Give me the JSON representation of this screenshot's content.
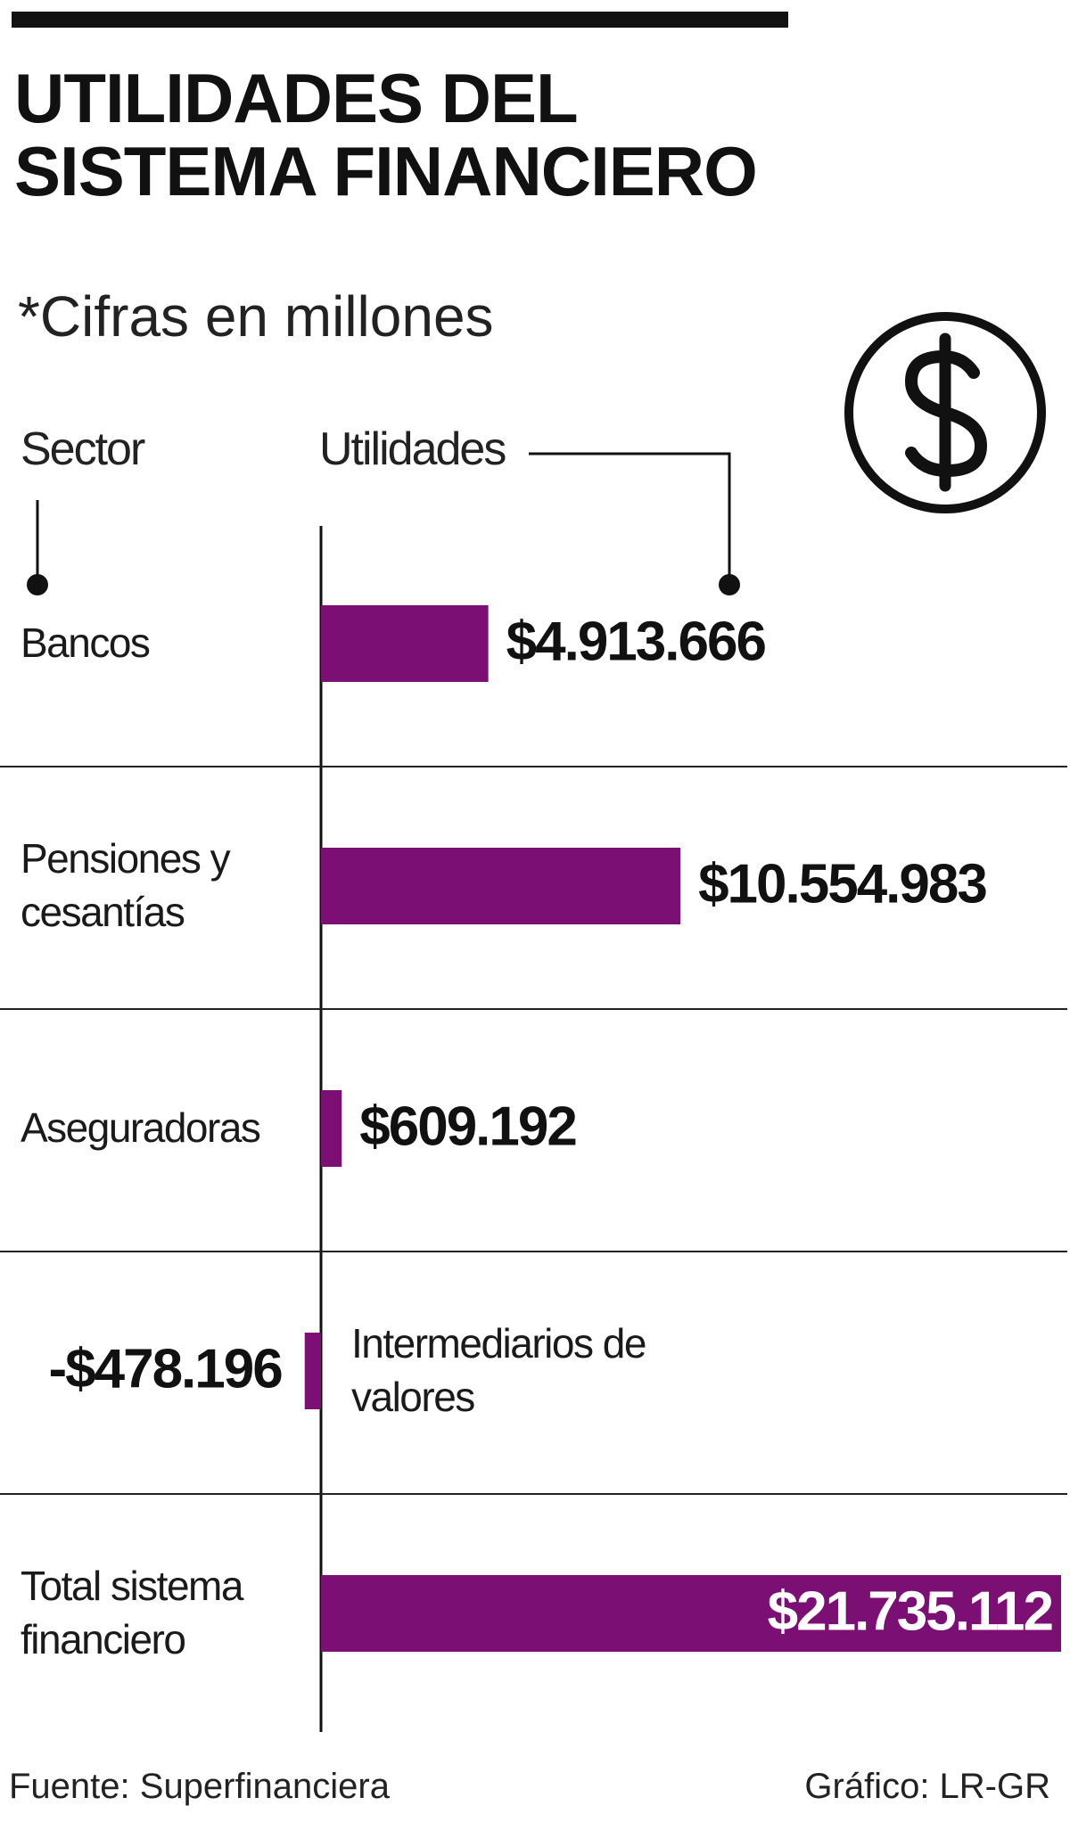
{
  "chart_data": {
    "type": "bar",
    "title": "UTILIDADES DEL SISTEMA FINANCIERO",
    "subtitle": "*Cifras en millones",
    "category_header": "Sector",
    "value_header": "Utilidades",
    "categories": [
      "Bancos",
      "Pensiones y cesantías",
      "Aseguradoras",
      "Intermediarios de valores",
      "Total sistema financiero"
    ],
    "values": [
      4913666,
      10554983,
      609192,
      -478196,
      21735112
    ],
    "value_labels": [
      "$4.913.666",
      "$10.554.983",
      "$609.192",
      "-$478.196",
      "$21.735.112"
    ],
    "color": "#7b0f73",
    "source": "Fuente: Superfinanciera",
    "credit": "Gráfico: LR-GR"
  }
}
